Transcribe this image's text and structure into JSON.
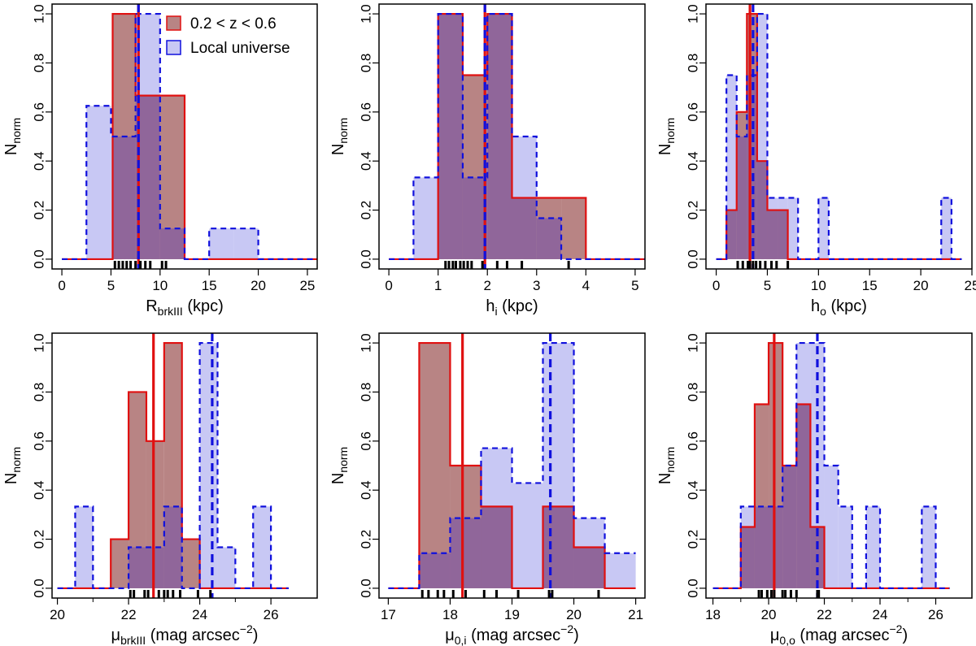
{
  "colors": {
    "sample_fill": "#b88484",
    "sample_stroke": "#e01010",
    "local_fill": "#c8c8f4",
    "local_stroke": "#1010dd",
    "overlap_fill": "#90669a",
    "rug": "#000000"
  },
  "legend": {
    "sample": "0.2 < z < 0.6",
    "local": "Local universe"
  },
  "chart_data": [
    {
      "type": "bar",
      "panel": "top-left",
      "xlabel_main": "R",
      "xlabel_sub": "brkIII",
      "xlabel_tail": " (kpc)",
      "ylabel_main": "N",
      "ylabel_sub": "norm",
      "xlim": [
        -1,
        26
      ],
      "ylim": [
        -0.04,
        1.04
      ],
      "xticks": [
        0,
        5,
        10,
        15,
        20,
        25
      ],
      "yticks": [
        "0.0",
        "0.2",
        "0.4",
        "0.6",
        "0.8",
        "1.0"
      ],
      "series": [
        {
          "name": "Local universe",
          "edges": [
            0,
            2.5,
            5,
            7.5,
            10,
            12.5,
            15,
            17.5,
            20,
            26
          ],
          "values": [
            0,
            0.625,
            0.5,
            1.0,
            0.125,
            0,
            0.125,
            0.125,
            0
          ]
        },
        {
          "name": "0.2 < z < 0.6",
          "edges": [
            0,
            5.17,
            7.5,
            10,
            12.5,
            26
          ],
          "values": [
            0,
            1.0,
            0.667,
            0.667,
            0
          ]
        }
      ],
      "median_sample": 7.8,
      "median_local": 7.8,
      "rug": [
        5.4,
        5.8,
        6.2,
        6.6,
        7.0,
        7.5,
        8.0,
        8.5,
        9.0,
        10.2,
        10.6
      ]
    },
    {
      "type": "bar",
      "panel": "top-middle",
      "xlabel_main": "h",
      "xlabel_sub": "i",
      "xlabel_tail": " (kpc)",
      "ylabel_main": "N",
      "ylabel_sub": "norm",
      "xlim": [
        -0.2,
        5.2
      ],
      "ylim": [
        -0.04,
        1.04
      ],
      "xticks": [
        0,
        1,
        2,
        3,
        4,
        5
      ],
      "yticks": [
        "0.0",
        "0.2",
        "0.4",
        "0.6",
        "0.8",
        "1.0"
      ],
      "series": [
        {
          "name": "Local universe",
          "edges": [
            0,
            0.5,
            1,
            1.5,
            2,
            2.5,
            3,
            3.5,
            4,
            5.2
          ],
          "values": [
            0,
            0.333,
            1.0,
            0.333,
            1.0,
            0.5,
            0.167,
            0,
            0
          ]
        },
        {
          "name": "0.2 < z < 0.6",
          "edges": [
            0,
            1,
            1.5,
            2,
            2.5,
            3,
            3.5,
            4,
            5.2
          ],
          "values": [
            0,
            1.0,
            0.75,
            1.0,
            0.25,
            0.25,
            0.25,
            0
          ]
        }
      ],
      "median_sample": 1.95,
      "median_local": 1.95,
      "rug": [
        1.15,
        1.22,
        1.3,
        1.36,
        1.45,
        1.52,
        1.6,
        1.68,
        1.9,
        2.2,
        2.4,
        2.7,
        3.65
      ]
    },
    {
      "type": "bar",
      "panel": "top-right",
      "xlabel_main": "h",
      "xlabel_sub": "o",
      "xlabel_tail": " (kpc)",
      "ylabel_main": "N",
      "ylabel_sub": "norm",
      "xlim": [
        -1,
        25
      ],
      "ylim": [
        -0.04,
        1.04
      ],
      "xticks": [
        0,
        5,
        10,
        15,
        20,
        25
      ],
      "yticks": [
        "0.0",
        "0.2",
        "0.4",
        "0.6",
        "0.8",
        "1.0"
      ],
      "series": [
        {
          "name": "Local universe",
          "edges": [
            0,
            1,
            2,
            3,
            4,
            5,
            6,
            7,
            8,
            10,
            11,
            22,
            23,
            24
          ],
          "values": [
            0,
            0.75,
            0.5,
            0.75,
            1.0,
            0.25,
            0.25,
            0.25,
            0,
            0.25,
            0,
            0.25,
            0
          ]
        },
        {
          "name": "0.2 < z < 0.6",
          "edges": [
            0,
            1,
            2,
            3,
            4,
            5,
            6,
            7,
            24
          ],
          "values": [
            0,
            0.2,
            0.6,
            1.0,
            0.4,
            0.2,
            0.2,
            0
          ]
        }
      ],
      "median_sample": 3.3,
      "median_local": 3.6,
      "rug": [
        2.1,
        2.6,
        3.1,
        3.3,
        3.6,
        3.9,
        4.3,
        4.8,
        5.4,
        5.9,
        7.0
      ]
    },
    {
      "type": "bar",
      "panel": "bottom-left",
      "xlabel_main": "μ",
      "xlabel_sub": "brkIII",
      "xlabel_tail": " (mag arcsec",
      "xlabel_sup": "−2",
      "xlabel_end": ")",
      "ylabel_main": "N",
      "ylabel_sub": "norm",
      "xlim": [
        19.85,
        27.3
      ],
      "ylim": [
        -0.04,
        1.04
      ],
      "xticks": [
        20,
        22,
        24,
        26
      ],
      "yticks": [
        "0.0",
        "0.2",
        "0.4",
        "0.6",
        "0.8",
        "1.0"
      ],
      "series": [
        {
          "name": "Local universe",
          "edges": [
            20,
            20.5,
            21,
            21.5,
            22,
            22.5,
            23,
            23.5,
            24,
            24.5,
            25,
            25.5,
            26,
            26.5
          ],
          "values": [
            0,
            0.333,
            0,
            0,
            0.167,
            0.167,
            0.333,
            0,
            1.0,
            0.167,
            0,
            0.333,
            0
          ]
        },
        {
          "name": "0.2 < z < 0.6",
          "edges": [
            20,
            21.5,
            22,
            22.5,
            23,
            23.5,
            24,
            26.5
          ],
          "values": [
            0,
            0.2,
            0.8,
            0.6,
            1.0,
            0.2,
            0
          ]
        }
      ],
      "median_sample": 22.7,
      "median_local": 24.35,
      "rug": [
        22.05,
        22.15,
        22.45,
        22.55,
        22.85,
        23.0,
        23.1,
        23.25,
        23.45,
        23.95,
        24.3
      ]
    },
    {
      "type": "bar",
      "panel": "bottom-middle",
      "xlabel_main": "μ",
      "xlabel_sub": "0,i",
      "xlabel_tail": " (mag arcsec",
      "xlabel_sup": "−2",
      "xlabel_end": ")",
      "ylabel_main": "N",
      "ylabel_sub": "norm",
      "xlim": [
        16.85,
        21.15
      ],
      "ylim": [
        -0.04,
        1.04
      ],
      "xticks": [
        17,
        18,
        19,
        20,
        21
      ],
      "yticks": [
        "0.0",
        "0.2",
        "0.4",
        "0.6",
        "0.8",
        "1.0"
      ],
      "series": [
        {
          "name": "Local universe",
          "edges": [
            17,
            17.5,
            18,
            18.5,
            19,
            19.5,
            20,
            20.5,
            21
          ],
          "values": [
            0,
            0.143,
            0.286,
            0.571,
            0.429,
            1.0,
            0.286,
            0.143
          ]
        },
        {
          "name": "0.2 < z < 0.6",
          "edges": [
            17,
            17.5,
            18,
            18.5,
            19,
            19.5,
            20,
            20.5,
            21
          ],
          "values": [
            0,
            1.0,
            0.5,
            0.333,
            0,
            0.333,
            0.167,
            0
          ]
        }
      ],
      "median_sample": 18.2,
      "median_local": 19.62,
      "rug": [
        17.55,
        17.65,
        17.8,
        17.9,
        18.05,
        18.25,
        18.55,
        18.75,
        19.1,
        19.6,
        19.65,
        20.4
      ]
    },
    {
      "type": "bar",
      "panel": "bottom-right",
      "xlabel_main": "μ",
      "xlabel_sub": "0,o",
      "xlabel_tail": " (mag arcsec",
      "xlabel_sup": "−2",
      "xlabel_end": ")",
      "ylabel_main": "N",
      "ylabel_sub": "norm",
      "xlim": [
        17.75,
        27.3
      ],
      "ylim": [
        -0.04,
        1.04
      ],
      "xticks": [
        18,
        20,
        22,
        24,
        26
      ],
      "yticks": [
        "0.0",
        "0.2",
        "0.4",
        "0.6",
        "0.8",
        "1.0"
      ],
      "series": [
        {
          "name": "Local universe",
          "edges": [
            18,
            19,
            19.5,
            20,
            20.5,
            21,
            21.5,
            22,
            22.5,
            23,
            23.5,
            24,
            25.5,
            26,
            26.5
          ],
          "values": [
            0,
            0.333,
            0.333,
            0.333,
            0.5,
            1.0,
            1.0,
            0.5,
            0.333,
            0,
            0.333,
            0,
            0.333,
            0
          ]
        },
        {
          "name": "0.2 < z < 0.6",
          "edges": [
            18,
            19,
            19.5,
            20,
            20.5,
            21,
            21.5,
            22,
            26.5
          ],
          "values": [
            0,
            0.25,
            0.75,
            1.0,
            0.5,
            0.75,
            0.25,
            0
          ]
        }
      ],
      "median_sample": 20.2,
      "median_local": 21.75,
      "rug": [
        19.65,
        19.75,
        19.95,
        20.1,
        20.2,
        20.5,
        20.6,
        20.8,
        21.0,
        21.75,
        21.8
      ]
    }
  ]
}
